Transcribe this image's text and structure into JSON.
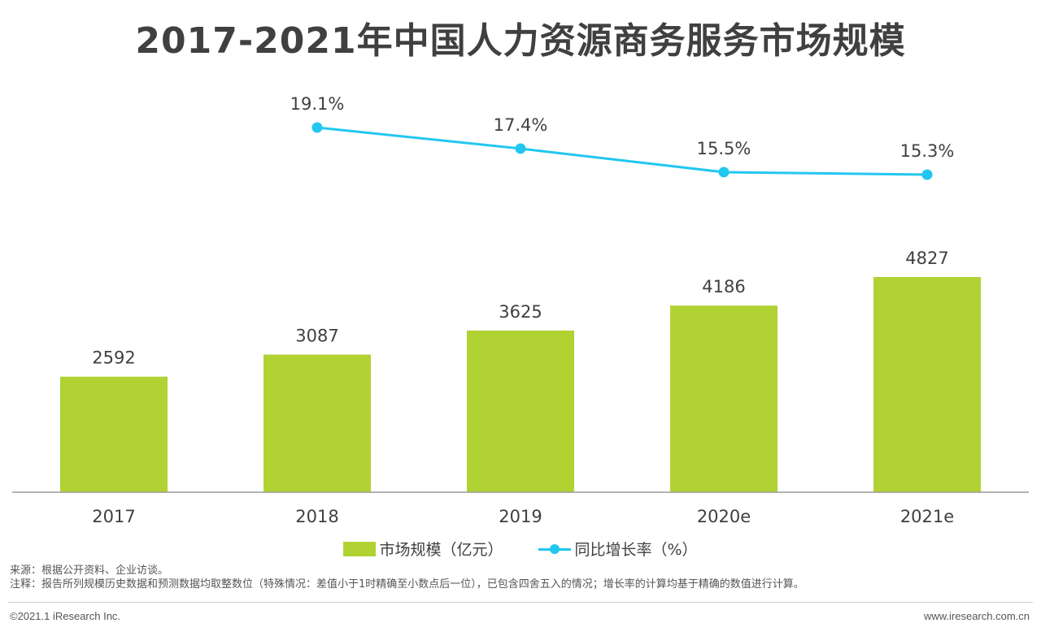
{
  "title": "2017-2021年中国人力资源商务服务市场规模",
  "chart_data": {
    "type": "bar",
    "categories": [
      "2017",
      "2018",
      "2019",
      "2020e",
      "2021e"
    ],
    "series": [
      {
        "name": "市场规模（亿元）",
        "type": "bar",
        "values": [
          2592,
          3087,
          3625,
          4186,
          4827
        ],
        "color": "#b1d233"
      },
      {
        "name": "同比增长率（%）",
        "type": "line",
        "values": [
          null,
          19.1,
          17.4,
          15.5,
          15.3
        ],
        "labels": [
          "",
          "19.1%",
          "17.4%",
          "15.5%",
          "15.3%"
        ],
        "color": "#22c7ef"
      }
    ],
    "grid": false,
    "legend": "bottom"
  },
  "legend": {
    "bar_label": "市场规模（亿元）",
    "line_label": "同比增长率（%）"
  },
  "notes": {
    "source": "来源：根据公开资料、企业访谈。",
    "note": "注释：报告所列规模历史数据和预测数据均取整数位（特殊情况：差值小于1时精确至小数点后一位），已包含四舍五入的情况；增长率的计算均基于精确的数值进行计算。"
  },
  "footer": {
    "copyright": "©2021.1 iResearch Inc.",
    "website": "www.iresearch.com.cn"
  }
}
